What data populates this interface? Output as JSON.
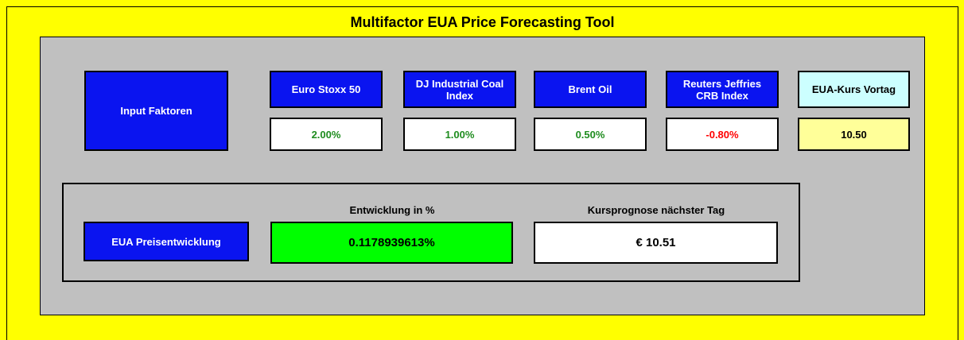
{
  "title": "Multifactor EUA Price Forecasting Tool",
  "inputs": {
    "label": "Input Faktoren",
    "factors": [
      {
        "name": "Euro Stoxx 50",
        "value": "2.00%",
        "color": "#1e8c1e"
      },
      {
        "name": "DJ Industrial Coal Index",
        "value": "1.00%",
        "color": "#1e8c1e"
      },
      {
        "name": "Brent Oil",
        "value": "0.50%",
        "color": "#1e8c1e"
      },
      {
        "name": "Reuters Jeffries CRB Index",
        "value": "-0.80%",
        "color": "#ff0000"
      }
    ],
    "previous": {
      "name": "EUA-Kurs Vortag",
      "value": "10.50"
    }
  },
  "result": {
    "label": "EUA Preisentwicklung",
    "change": {
      "name": "Entwicklung in %",
      "value": "0.1178939613%"
    },
    "forecast": {
      "name": "Kursprognose nächster Tag",
      "value": "€ 10.51"
    }
  }
}
